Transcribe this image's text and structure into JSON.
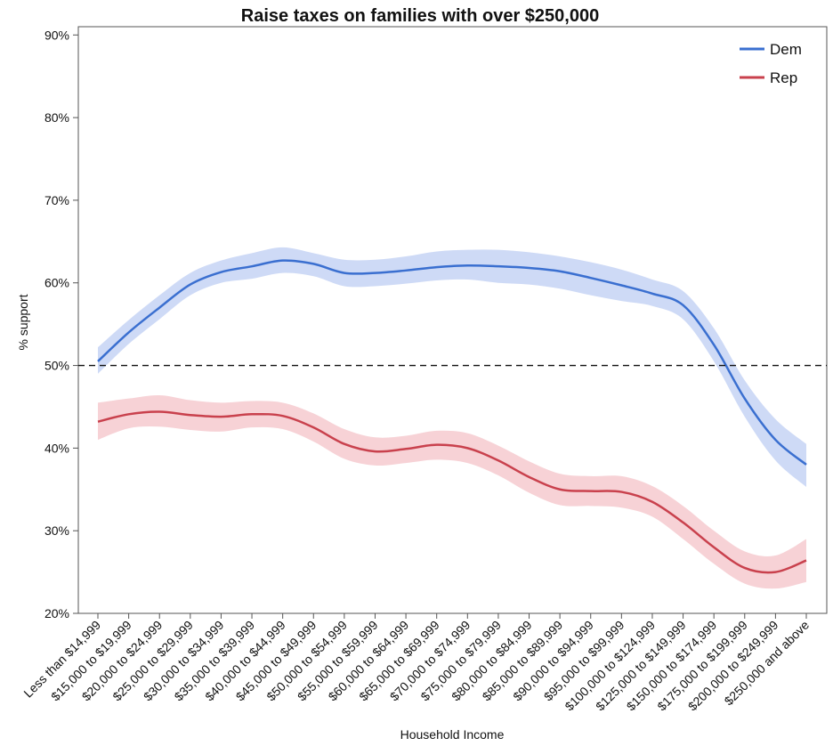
{
  "chart_data": {
    "type": "line",
    "title": "Raise taxes on families with over $250,000",
    "x_label": "Household Income",
    "y_label": "% support",
    "categories": [
      "Less than $14,999",
      "$15,000 to $19,999",
      "$20,000 to $24,999",
      "$25,000 to $29,999",
      "$30,000 to $34,999",
      "$35,000 to $39,999",
      "$40,000 to $44,999",
      "$45,000 to $49,999",
      "$50,000 to $54,999",
      "$55,000 to $59,999",
      "$60,000 to $64,999",
      "$65,000 to $69,999",
      "$70,000 to $74,999",
      "$75,000 to $79,999",
      "$80,000 to $84,999",
      "$85,000 to $89,999",
      "$90,000 to $94,999",
      "$95,000 to $99,999",
      "$100,000 to $124,999",
      "$125,000 to $149,999",
      "$150,000 to $174,999",
      "$175,000 to $199,999",
      "$200,000 to $249,999",
      "$250,000 and above"
    ],
    "series": [
      {
        "name": "Dem",
        "color": "#3a6fd0",
        "band_color": "#c9d6f5",
        "values": [
          50.5,
          54,
          57,
          59.8,
          61.3,
          62,
          62.7,
          62.3,
          61.2,
          61.2,
          61.5,
          61.9,
          62.1,
          62,
          61.8,
          61.4,
          60.6,
          59.7,
          58.7,
          57.3,
          52.5,
          46,
          41,
          38
        ],
        "upper": [
          52.2,
          55.5,
          58.5,
          61.2,
          62.7,
          63.6,
          64.3,
          63.6,
          62.8,
          62.8,
          63.2,
          63.8,
          64,
          64,
          63.7,
          63.2,
          62.5,
          61.6,
          60.4,
          59,
          54.5,
          48.2,
          43.5,
          40.5
        ],
        "lower": [
          49,
          52.6,
          55.6,
          58.5,
          60,
          60.5,
          61.2,
          60.8,
          59.6,
          59.6,
          59.9,
          60.3,
          60.4,
          60,
          59.8,
          59.3,
          58.5,
          57.8,
          57.2,
          55.6,
          50.5,
          43.8,
          38.5,
          35.3
        ]
      },
      {
        "name": "Rep",
        "color": "#c9414d",
        "band_color": "#f6cdd2",
        "values": [
          43.2,
          44.1,
          44.4,
          44,
          43.8,
          44.1,
          43.9,
          42.5,
          40.5,
          39.6,
          39.9,
          40.4,
          40,
          38.5,
          36.5,
          35,
          34.8,
          34.7,
          33.5,
          31,
          28,
          25.5,
          25,
          26.4
        ],
        "upper": [
          45.5,
          46,
          46.4,
          45.8,
          45.5,
          45.7,
          45.5,
          44.2,
          42.3,
          41.3,
          41.5,
          42.1,
          41.8,
          40.3,
          38.4,
          36.9,
          36.6,
          36.6,
          35.4,
          33,
          30,
          27.5,
          27,
          29
        ],
        "lower": [
          41,
          42.4,
          42.6,
          42.2,
          42,
          42.5,
          42.3,
          40.8,
          38.7,
          37.9,
          38.2,
          38.6,
          38.2,
          36.7,
          34.6,
          33.1,
          33,
          32.8,
          31.7,
          29,
          26,
          23.6,
          23,
          23.8
        ]
      }
    ],
    "ylim": [
      20,
      91
    ],
    "yticks": [
      {
        "value": 20,
        "label": "20%"
      },
      {
        "value": 30,
        "label": "30%"
      },
      {
        "value": 40,
        "label": "40%"
      },
      {
        "value": 50,
        "label": "50%"
      },
      {
        "value": 60,
        "label": "60%"
      },
      {
        "value": 70,
        "label": "70%"
      },
      {
        "value": 80,
        "label": "80%"
      },
      {
        "value": 90,
        "label": "90%"
      }
    ],
    "reference_line": 50,
    "legend": "top-right"
  }
}
